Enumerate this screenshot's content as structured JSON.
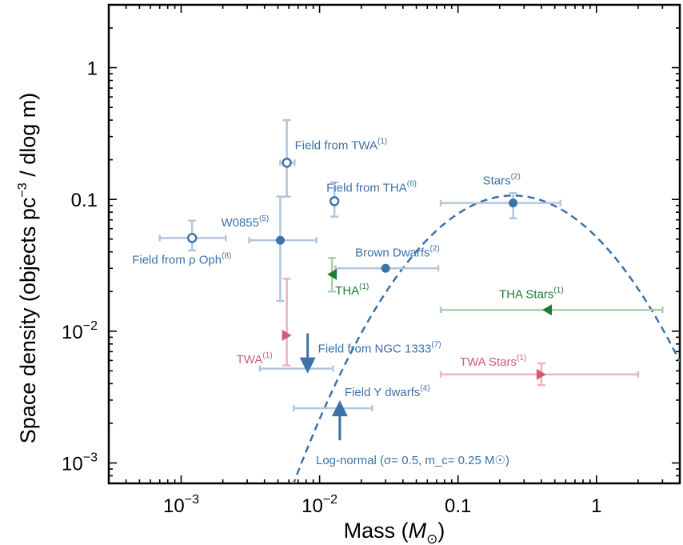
{
  "chart_data": {
    "type": "scatter",
    "x_scale": "log",
    "y_scale": "log",
    "xlim": [
      0.0003,
      4.0
    ],
    "ylim": [
      0.0007,
      3.0
    ],
    "xlabel": "Mass (M☉)",
    "ylabel": "Space density (objects pc⁻³ / dlog m)",
    "x_ticks": [
      {
        "value": 0.001,
        "base": "10",
        "exp": "−3"
      },
      {
        "value": 0.01,
        "base": "10",
        "exp": "−2"
      },
      {
        "value": 0.1,
        "text": "0.1"
      },
      {
        "value": 1,
        "text": "1"
      }
    ],
    "y_ticks": [
      {
        "value": 0.001,
        "base": "10",
        "exp": "−3"
      },
      {
        "value": 0.01,
        "base": "10",
        "exp": "−2"
      },
      {
        "value": 0.1,
        "text": "0.1"
      },
      {
        "value": 1,
        "text": "1"
      }
    ],
    "colors": {
      "blue": "#3b72aa",
      "blue_err": "#b4c6dc",
      "green": "#1f7a34",
      "green_err": "#a9cfae",
      "red": "#d05c76",
      "red_err": "#eeb3c0"
    },
    "curve": {
      "name": "Log-normal",
      "label": "Log-normal (σ= 0.5, m_c= 0.25 M☉)",
      "sigma": 0.5,
      "mc": 0.25,
      "peak": 0.107,
      "style": "dashed",
      "color": "#3b72aa"
    },
    "points": [
      {
        "id": "field-from-twa",
        "label": "Field from TWA",
        "ref": "(1)",
        "x": 0.0058,
        "y": 0.19,
        "xerr": [
          0.0052,
          0.0066
        ],
        "yerr": [
          0.105,
          0.4
        ],
        "marker": "open-circle",
        "color": "blue"
      },
      {
        "id": "field-from-tha",
        "label": "Field from THA",
        "ref": "(6)",
        "x": 0.0128,
        "y": 0.097,
        "xerr": null,
        "yerr": [
          0.074,
          0.135
        ],
        "marker": "open-circle",
        "color": "blue"
      },
      {
        "id": "field-from-rho-oph",
        "label": "Field from ρ Oph",
        "ref": "(8)",
        "x": 0.0012,
        "y": 0.051,
        "xerr": [
          0.0007,
          0.0021
        ],
        "yerr": [
          0.041,
          0.069
        ],
        "marker": "open-circle",
        "color": "blue"
      },
      {
        "id": "w0855",
        "label": "W0855",
        "ref": "(5)",
        "x": 0.0052,
        "y": 0.049,
        "xerr": [
          0.0031,
          0.0095
        ],
        "yerr": [
          0.017,
          0.105
        ],
        "marker": "filled-circle",
        "color": "blue"
      },
      {
        "id": "stars",
        "label": "Stars",
        "ref": "(2)",
        "x": 0.25,
        "y": 0.094,
        "xerr": [
          0.075,
          0.55
        ],
        "yerr": [
          0.072,
          0.112
        ],
        "marker": "filled-circle",
        "color": "blue"
      },
      {
        "id": "brown-dwarfs",
        "label": "Brown Dwarfs",
        "ref": "(2)",
        "x": 0.03,
        "y": 0.03,
        "xerr": [
          0.013,
          0.072
        ],
        "yerr": null,
        "marker": "filled-circle",
        "color": "blue"
      },
      {
        "id": "tha",
        "label": "THA",
        "ref": "(1)",
        "x": 0.0123,
        "y": 0.027,
        "xerr": null,
        "yerr": [
          0.02,
          0.036
        ],
        "marker": "left-triangle",
        "color": "green"
      },
      {
        "id": "tha-stars",
        "label": "THA Stars",
        "ref": "(1)",
        "x": 0.44,
        "y": 0.0145,
        "xerr": [
          0.075,
          3.0
        ],
        "yerr": null,
        "marker": "left-triangle",
        "color": "green"
      },
      {
        "id": "twa",
        "label": "TWA",
        "ref": "(1)",
        "x": 0.0058,
        "y": 0.0093,
        "xerr": null,
        "yerr": [
          0.0055,
          0.025
        ],
        "marker": "right-triangle",
        "color": "red"
      },
      {
        "id": "twa-stars",
        "label": "TWA Stars",
        "ref": "(1)",
        "x": 0.4,
        "y": 0.0047,
        "xerr": [
          0.075,
          2.0
        ],
        "yerr": [
          0.0039,
          0.0057
        ],
        "marker": "right-triangle",
        "color": "red"
      },
      {
        "id": "field-from-ngc1333",
        "label": "Field from NGC 1333",
        "ref": "(7)",
        "x": 0.0082,
        "y": 0.0052,
        "xerr": [
          0.0037,
          0.0125
        ],
        "yerr": null,
        "marker": "upper-limit-arrow",
        "color": "blue"
      },
      {
        "id": "field-y-dwarfs",
        "label": "Field Y dwarfs",
        "ref": "(4)",
        "x": 0.014,
        "y": 0.0026,
        "xerr": [
          0.0065,
          0.024
        ],
        "yerr": null,
        "marker": "lower-limit-arrow",
        "color": "blue"
      }
    ]
  }
}
